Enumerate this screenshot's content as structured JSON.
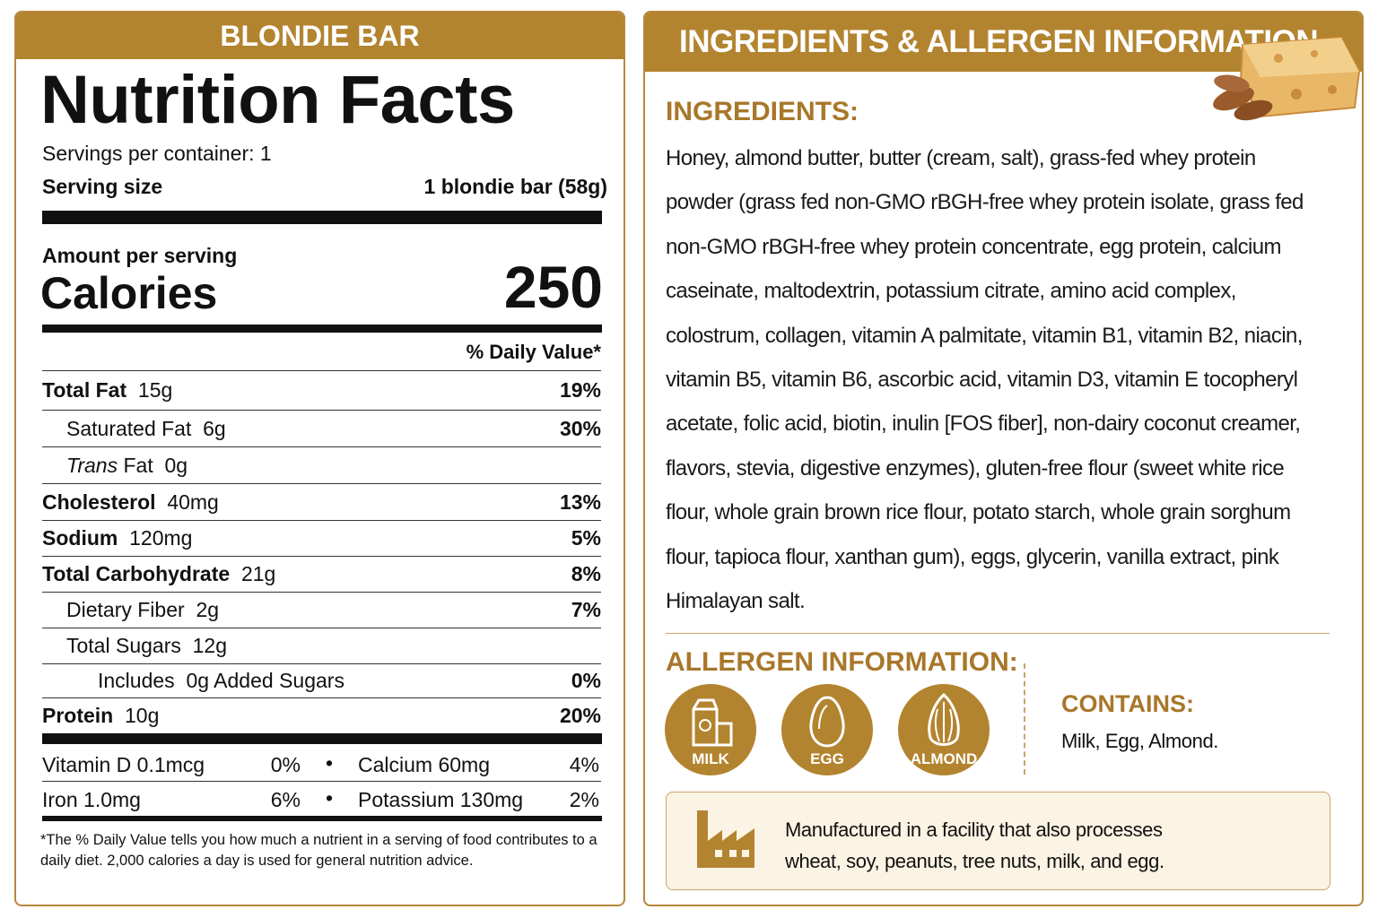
{
  "nutrition": {
    "product": "BLONDIE BAR",
    "title": "Nutrition Facts",
    "servings_per_container": "Servings per container: 1",
    "serving_size_label": "Serving size",
    "serving_size": "1 blondie bar (58g)",
    "amount_per_serving": "Amount per serving",
    "calories_label": "Calories",
    "calories": "250",
    "daily_value_header": "% Daily Value*",
    "rows": [
      {
        "name": "Total Fat",
        "amount": "15g",
        "dv": "19%"
      },
      {
        "name": "Saturated Fat",
        "amount": "6g",
        "dv": "30%"
      },
      {
        "name_italic": "Trans",
        "name": "Fat",
        "amount": "0g"
      },
      {
        "name": "Cholesterol",
        "amount": "40mg",
        "dv": "13%"
      },
      {
        "name": "Sodium",
        "amount": "120mg",
        "dv": "5%"
      },
      {
        "name": "Total Carbohydrate",
        "amount": "21g",
        "dv": "8%"
      },
      {
        "name": "Dietary Fiber",
        "amount": "2g",
        "dv": "7%"
      },
      {
        "name": "Total Sugars",
        "amount": "12g"
      },
      {
        "prefix": "Includes",
        "amount": "0g",
        "name": "Added Sugars",
        "dv": "0%"
      },
      {
        "name": "Protein",
        "amount": "10g",
        "dv": "20%"
      }
    ],
    "micronutrients": [
      [
        {
          "name": "Vitamin D 0.1mcg",
          "dv": "0%"
        },
        {
          "name": "Calcium 60mg",
          "dv": "4%"
        }
      ],
      [
        {
          "name": "Iron 1.0mg",
          "dv": "6%"
        },
        {
          "name": "Potassium 130mg",
          "dv": "2%"
        }
      ]
    ],
    "footnote": "*The % Daily Value tells you how much a nutrient in a serving of food contributes to a daily diet. 2,000 calories a day is used for general nutrition advice."
  },
  "ingredients_panel": {
    "title": "INGREDIENTS & ALLERGEN INFORMATION",
    "ingredients_heading": "INGREDIENTS:",
    "ingredients": "Honey, almond butter, butter (cream, salt), grass-fed whey protein powder (grass fed non-GMO rBGH-free whey protein isolate, grass fed non-GMO rBGH-free whey protein concentrate, egg protein, calcium caseinate, maltodextrin, potassium citrate, amino acid complex, colostrum, collagen, vitamin A palmitate, vitamin B1, vitamin B2, niacin, vitamin B5, vitamin B6, ascorbic acid, vitamin D3, vitamin E tocopheryl acetate, folic acid, biotin, inulin [FOS fiber], non-dairy coconut creamer, flavors, stevia, digestive enzymes), gluten-free flour (sweet white rice flour, whole grain brown rice flour, potato starch, whole grain sorghum flour, tapioca flour, xanthan gum), eggs, glycerin, vanilla extract, pink Himalayan salt.",
    "allergen_heading": "ALLERGEN INFORMATION:",
    "allergens": [
      "MILK",
      "EGG",
      "ALMOND"
    ],
    "contains_heading": "CONTAINS:",
    "contains": "Milk, Egg, Almond.",
    "facility_note": "Manufactured in a facility that also processes wheat, soy, peanuts, tree nuts, milk, and egg."
  }
}
